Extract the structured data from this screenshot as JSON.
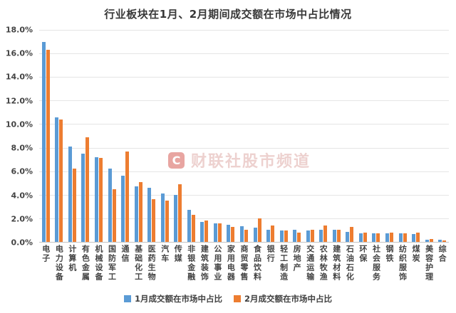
{
  "title": "行业板块在1月、2月期间成交额在市场中占比情况",
  "watermark": {
    "logo_letter": "C",
    "text": "财联社股市频道"
  },
  "colors": {
    "series1": "#5B9BD5",
    "series2": "#ED7D31",
    "gridline": "#E5E5E5",
    "axis_line": "#C2C2C2",
    "text": "#404040",
    "watermark_red": "#CD372E"
  },
  "legend": [
    {
      "label": "1月成交额在市场中占比",
      "color": "#5B9BD5"
    },
    {
      "label": "2月成交额在市场中占比",
      "color": "#ED7D31"
    }
  ],
  "chart_data": {
    "type": "bar",
    "title": "行业板块在1月、2月期间成交额在市场中占比情况",
    "categories": [
      "电子",
      "电力设备",
      "计算机",
      "有色金属",
      "机械设备",
      "国防军工",
      "通信",
      "基础化工",
      "医药生物",
      "汽车",
      "传媒",
      "非银金融",
      "建筑装饰",
      "公用事业",
      "家用电器",
      "商贸零售",
      "食品饮料",
      "银行",
      "轻工制造",
      "房地产",
      "交通运输",
      "农林牧渔",
      "建筑材料",
      "石油石化",
      "环保",
      "社会服务",
      "钢铁",
      "纺织服饰",
      "煤炭",
      "美容护理",
      "综合"
    ],
    "series": [
      {
        "name": "1月成交额在市场中占比",
        "color": "#5B9BD5",
        "values": [
          17.0,
          10.6,
          8.1,
          7.5,
          7.2,
          6.2,
          5.6,
          4.7,
          4.6,
          4.1,
          4.0,
          2.7,
          1.7,
          1.55,
          1.45,
          1.3,
          1.2,
          1.05,
          0.95,
          1.0,
          0.95,
          1.0,
          1.05,
          0.85,
          0.75,
          0.7,
          0.7,
          0.7,
          0.65,
          0.2,
          0.2
        ]
      },
      {
        "name": "2月成交额在市场中占比",
        "color": "#ED7D31",
        "values": [
          16.3,
          10.4,
          6.2,
          8.9,
          7.1,
          4.5,
          7.7,
          5.1,
          3.6,
          3.5,
          4.9,
          2.3,
          1.8,
          1.55,
          1.25,
          1.0,
          2.0,
          1.4,
          0.95,
          0.8,
          1.0,
          1.4,
          1.05,
          1.25,
          0.8,
          0.75,
          0.8,
          0.75,
          0.8,
          0.25,
          0.15
        ]
      }
    ],
    "xlabel": "",
    "ylabel": "",
    "ylim": [
      0,
      18
    ],
    "ytick_step": 2,
    "ytick_labels": [
      "18.0%",
      "16.0%",
      "14.0%",
      "12.0%",
      "10.0%",
      "8.0%",
      "6.0%",
      "4.0%",
      "2.0%",
      "0.0%"
    ],
    "grid": true,
    "legend_position": "bottom"
  }
}
